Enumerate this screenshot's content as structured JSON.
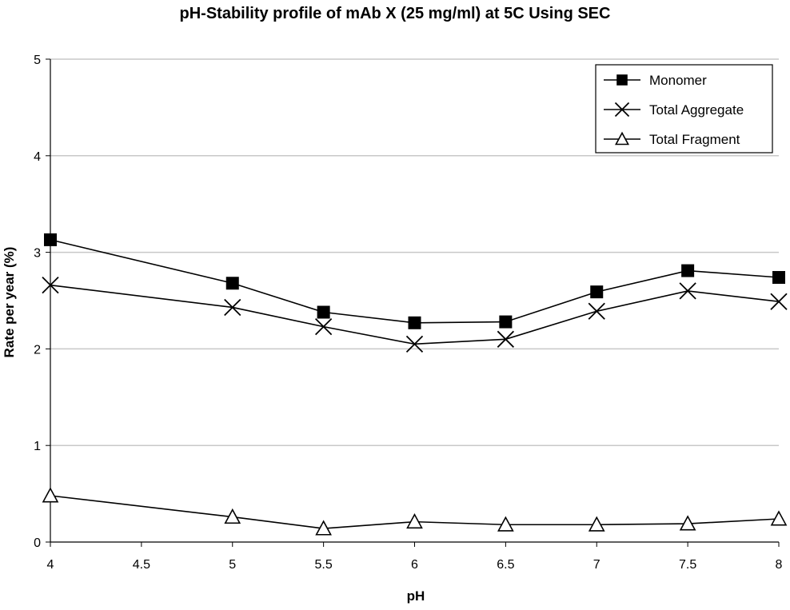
{
  "chart_data": {
    "type": "line",
    "title": "pH-Stability profile of mAb X (25 mg/ml) at 5C Using SEC",
    "xlabel": "pH",
    "ylabel": "Rate per year (%)",
    "xlim": [
      4,
      8
    ],
    "ylim": [
      0,
      5
    ],
    "x_ticks": [
      "4",
      "4.5",
      "5",
      "5.5",
      "6",
      "6.5",
      "7",
      "7.5",
      "8"
    ],
    "y_ticks": [
      "0",
      "1",
      "2",
      "3",
      "4",
      "5"
    ],
    "grid": "horizontal",
    "legend_position": "top-right",
    "x": [
      4,
      5,
      5.5,
      6,
      6.5,
      7,
      7.5,
      8
    ],
    "series": [
      {
        "name": "Monomer",
        "marker": "filled-square",
        "values": [
          3.13,
          2.68,
          2.38,
          2.27,
          2.28,
          2.59,
          2.81,
          2.74
        ]
      },
      {
        "name": "Total Aggregate",
        "marker": "x",
        "values": [
          2.66,
          2.43,
          2.23,
          2.05,
          2.1,
          2.39,
          2.6,
          2.49
        ]
      },
      {
        "name": "Total Fragment",
        "marker": "open-triangle",
        "values": [
          0.48,
          0.26,
          0.14,
          0.21,
          0.18,
          0.18,
          0.19,
          0.24
        ]
      }
    ]
  }
}
